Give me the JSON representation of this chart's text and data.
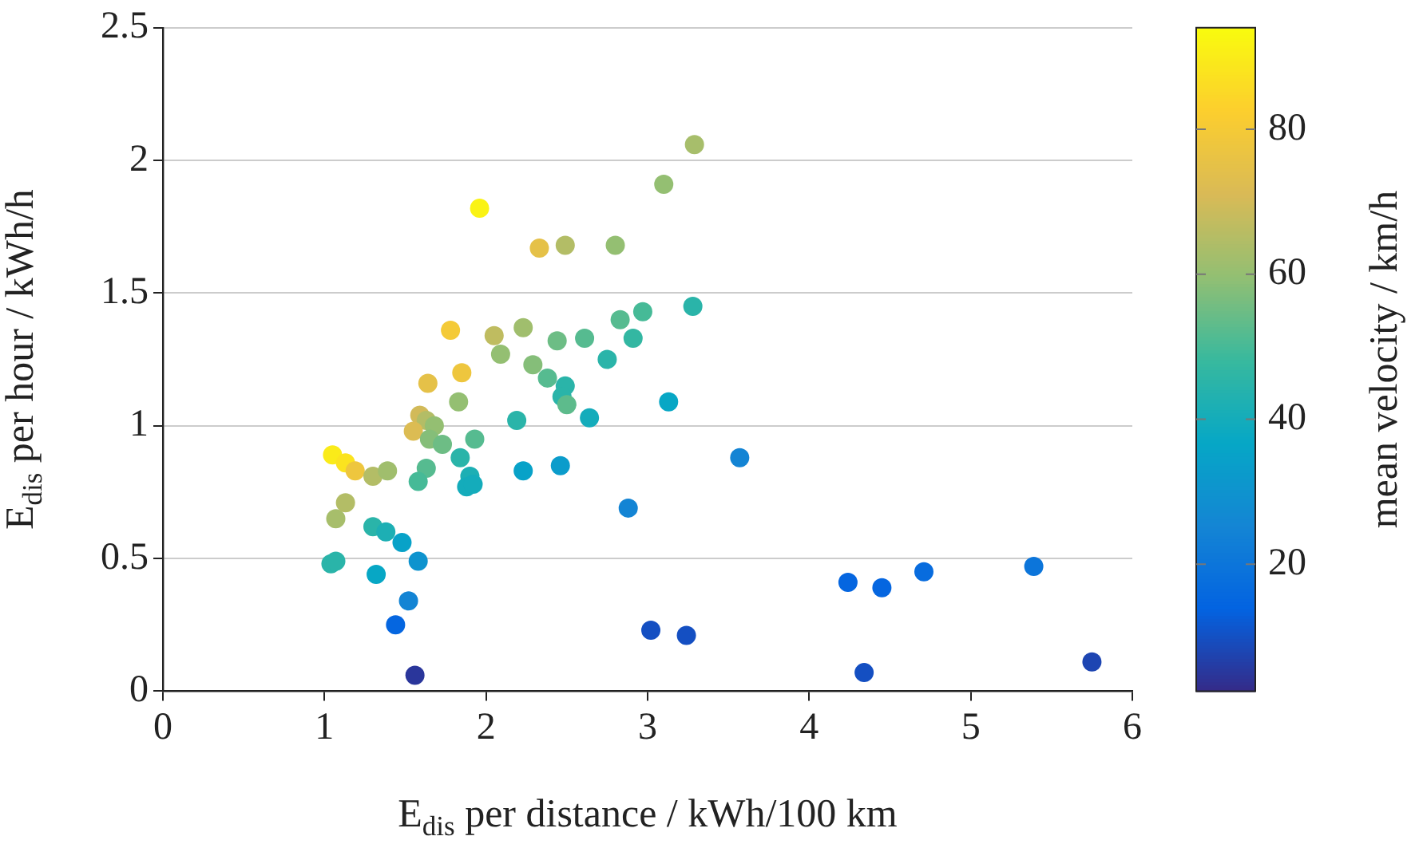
{
  "chart_data": {
    "type": "scatter",
    "xlabel": "E$_{dis}$ per distance / kWh/100 km",
    "ylabel": "E$_{dis}$ per hour / kWh/h",
    "clabel": "mean velocity / km/h",
    "x": [
      1.05,
      1.13,
      1.19,
      1.3,
      1.39,
      1.07,
      1.13,
      1.04,
      1.07,
      1.3,
      1.38,
      1.48,
      1.32,
      1.58,
      1.52,
      1.44,
      1.56,
      1.96,
      2.33,
      2.49,
      2.8,
      3.1,
      3.29,
      1.78,
      1.85,
      1.64,
      2.05,
      2.23,
      2.09,
      2.29,
      1.83,
      1.59,
      1.63,
      1.55,
      1.68,
      1.65,
      1.73,
      1.93,
      1.84,
      1.63,
      1.58,
      1.9,
      1.88,
      1.92,
      2.19,
      2.23,
      2.46,
      2.44,
      2.61,
      2.83,
      2.97,
      3.28,
      2.91,
      2.75,
      2.38,
      2.49,
      2.47,
      2.5,
      2.64,
      3.13,
      3.57,
      2.88,
      3.02,
      3.24,
      4.24,
      4.45,
      4.71,
      5.39,
      4.34,
      5.75
    ],
    "values": [
      0.89,
      0.86,
      0.83,
      0.81,
      0.83,
      0.65,
      0.71,
      0.48,
      0.49,
      0.62,
      0.6,
      0.56,
      0.44,
      0.49,
      0.34,
      0.25,
      0.06,
      1.82,
      1.67,
      1.68,
      1.68,
      1.91,
      2.06,
      1.36,
      1.2,
      1.16,
      1.34,
      1.37,
      1.27,
      1.23,
      1.09,
      1.04,
      1.02,
      0.98,
      1,
      0.95,
      0.93,
      0.95,
      0.88,
      0.84,
      0.79,
      0.81,
      0.77,
      0.78,
      1.02,
      0.83,
      0.85,
      1.32,
      1.33,
      1.4,
      1.43,
      1.45,
      1.33,
      1.25,
      1.18,
      1.15,
      1.11,
      1.08,
      1.03,
      1.09,
      0.88,
      0.69,
      0.23,
      0.21,
      0.41,
      0.39,
      0.45,
      0.47,
      0.07,
      0.11
    ],
    "cvalues": [
      90,
      88,
      78,
      65,
      62,
      63,
      65,
      45,
      45,
      45,
      42,
      35,
      37,
      30,
      25,
      15,
      5,
      92,
      75,
      65,
      60,
      60,
      63,
      80,
      78,
      75,
      67,
      62,
      60,
      58,
      60,
      70,
      65,
      72,
      60,
      58,
      55,
      52,
      45,
      52,
      50,
      42,
      40,
      40,
      45,
      35,
      33,
      55,
      52,
      52,
      50,
      45,
      47,
      45,
      52,
      45,
      45,
      53,
      40,
      37,
      25,
      25,
      10,
      10,
      15,
      15,
      17,
      20,
      10,
      8
    ],
    "xlim": [
      0,
      6
    ],
    "xticks": [
      0,
      1,
      2,
      3,
      4,
      5,
      6
    ],
    "ylim": [
      0,
      2.5
    ],
    "yticks": [
      0,
      0.5,
      1,
      1.5,
      2,
      2.5
    ],
    "clim": [
      2.5,
      94
    ],
    "cticks": [
      20,
      40,
      60,
      80
    ],
    "grid": "y",
    "marker": "circle",
    "legend": false
  }
}
